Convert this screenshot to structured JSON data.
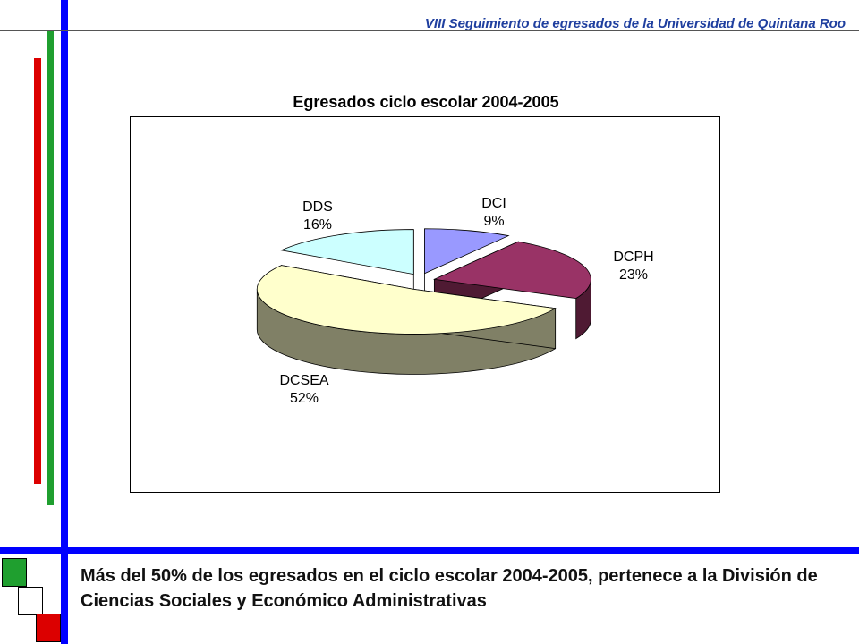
{
  "header": {
    "title": "VIII Seguimiento de egresados de la Universidad de Quintana Roo"
  },
  "decor": {
    "blue": "#0000ff",
    "green": "#1f9f2f",
    "red": "#dc0000"
  },
  "chart_data": {
    "type": "pie",
    "title": "Egresados ciclo escolar 2004-2005",
    "three_d": true,
    "exploded": true,
    "slices": [
      {
        "label": "DCI",
        "value": 9,
        "value_label": "9%",
        "color": "#9999ff",
        "side_color": "#4f4f8f"
      },
      {
        "label": "DCPH",
        "value": 23,
        "value_label": "23%",
        "color": "#993366",
        "side_color": "#4f1a33"
      },
      {
        "label": "DCSEA",
        "value": 52,
        "value_label": "52%",
        "color": "#ffffcc",
        "side_color": "#808066"
      },
      {
        "label": "DDS",
        "value": 16,
        "value_label": "16%",
        "color": "#ccffff",
        "side_color": "#668080"
      }
    ]
  },
  "caption": {
    "text": "Más del 50% de los egresados en el ciclo escolar 2004-2005, pertenece a la División de Ciencias Sociales y Económico Administrativas"
  }
}
